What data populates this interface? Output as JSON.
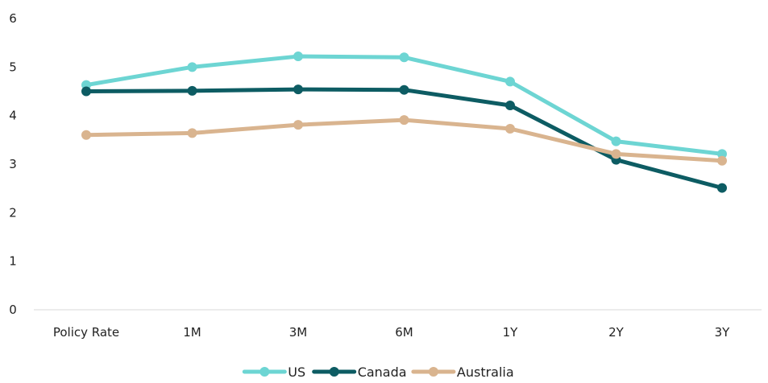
{
  "chart_data": {
    "type": "line",
    "categories": [
      "Policy Rate",
      "1M",
      "3M",
      "6M",
      "1Y",
      "2Y",
      "3Y"
    ],
    "series": [
      {
        "name": "US",
        "color": "#6dd5d3",
        "values": [
          4.63,
          5.0,
          5.22,
          5.2,
          4.7,
          3.47,
          3.21
        ]
      },
      {
        "name": "Canada",
        "color": "#0d5c63",
        "values": [
          4.5,
          4.51,
          4.54,
          4.53,
          4.21,
          3.09,
          2.51
        ]
      },
      {
        "name": "Australia",
        "color": "#d9b48f",
        "values": [
          3.6,
          3.64,
          3.81,
          3.91,
          3.73,
          3.21,
          3.07
        ]
      }
    ],
    "y_ticks": [
      "0",
      "1",
      "2",
      "3",
      "4",
      "5",
      "6"
    ],
    "ylim": [
      0,
      6
    ],
    "grid": false,
    "legend_position": "bottom-center",
    "axis_color": "#d9d9d9"
  }
}
